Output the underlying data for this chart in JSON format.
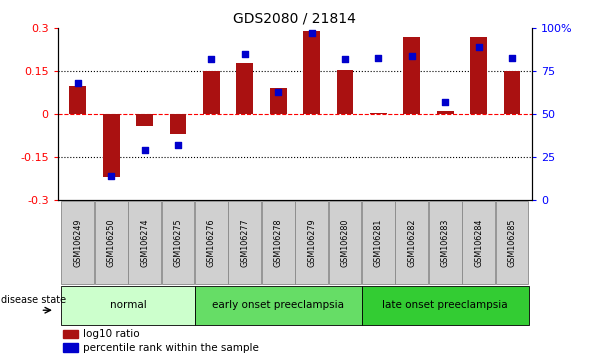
{
  "title": "GDS2080 / 21814",
  "samples": [
    "GSM106249",
    "GSM106250",
    "GSM106274",
    "GSM106275",
    "GSM106276",
    "GSM106277",
    "GSM106278",
    "GSM106279",
    "GSM106280",
    "GSM106281",
    "GSM106282",
    "GSM106283",
    "GSM106284",
    "GSM106285"
  ],
  "log10_ratio": [
    0.1,
    -0.22,
    -0.04,
    -0.07,
    0.15,
    0.18,
    0.09,
    0.29,
    0.155,
    0.005,
    0.27,
    0.01,
    0.27,
    0.15
  ],
  "percentile_rank": [
    68,
    14,
    29,
    32,
    82,
    85,
    63,
    97,
    82,
    83,
    84,
    57,
    89,
    83
  ],
  "groups": [
    {
      "label": "normal",
      "start": 0,
      "end": 4,
      "color": "#ccffcc"
    },
    {
      "label": "early onset preeclampsia",
      "start": 4,
      "end": 9,
      "color": "#66dd66"
    },
    {
      "label": "late onset preeclampsia",
      "start": 9,
      "end": 14,
      "color": "#33cc33"
    }
  ],
  "bar_color": "#aa1111",
  "dot_color": "#0000cc",
  "left_ylim": [
    -0.3,
    0.3
  ],
  "right_ylim": [
    0,
    100
  ],
  "left_yticks": [
    -0.3,
    -0.15,
    0,
    0.15,
    0.3
  ],
  "right_yticks": [
    0,
    25,
    50,
    75,
    100
  ],
  "left_yticklabels": [
    "-0.3",
    "-0.15",
    "0",
    "0.15",
    "0.3"
  ],
  "right_yticklabels": [
    "0",
    "25",
    "50",
    "75",
    "100%"
  ],
  "legend_log10": "log10 ratio",
  "legend_pct": "percentile rank within the sample",
  "disease_state_label": "disease state",
  "hline_dotted": [
    -0.15,
    0.15
  ],
  "hline_dashed_red": 0.0,
  "bar_width": 0.5,
  "sample_box_color": "#d0d0d0",
  "sample_box_edge": "#888888"
}
